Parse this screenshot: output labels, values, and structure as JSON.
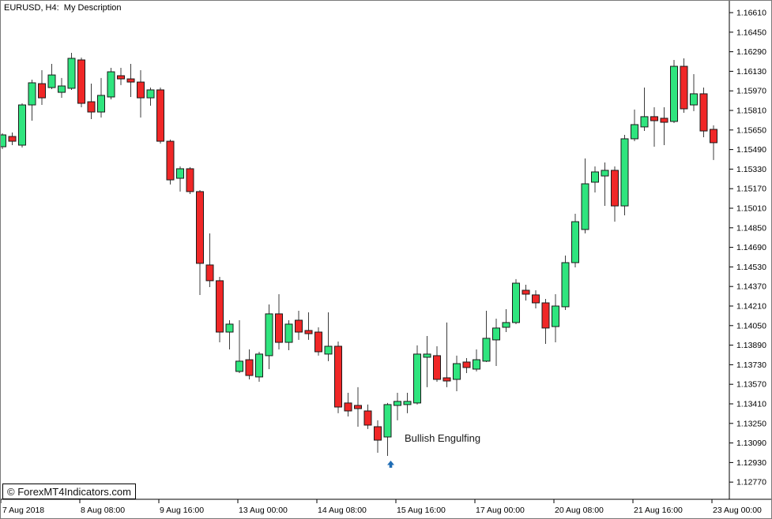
{
  "window": {
    "title": "EURUSD, H4:  My Description"
  },
  "annotation": {
    "label": "Bullish Engulfing",
    "arrow_color": "#1f6cb4",
    "signal_candle_index": 39
  },
  "watermark": {
    "text": "© ForexMT4Indicators.com"
  },
  "colors": {
    "background": "#ffffff",
    "bull_body": "#2fe57e",
    "bear_body": "#f02727",
    "body_border": "#1a1a1a",
    "wick": "#3c3c3c",
    "axis_line": "#000000",
    "axis_text": "#000000"
  },
  "chart_data": {
    "type": "candlestick",
    "symbol": "EURUSD",
    "timeframe": "H4",
    "title": "EURUSD, H4:  My Description",
    "grid": "off",
    "legend": "none",
    "price_axis": {
      "side": "right",
      "max": 1.1661,
      "min": 1.1277,
      "step": 0.0016,
      "labels": [
        "1.16610",
        "1.16450",
        "1.16290",
        "1.16130",
        "1.15970",
        "1.15810",
        "1.15650",
        "1.15490",
        "1.15330",
        "1.15170",
        "1.15010",
        "1.14850",
        "1.14690",
        "1.14530",
        "1.14370",
        "1.14210",
        "1.14050",
        "1.13890",
        "1.13730",
        "1.13570",
        "1.13410",
        "1.13250",
        "1.13090",
        "1.12930",
        "1.12770"
      ]
    },
    "time_axis": {
      "labels": [
        "7 Aug 2018",
        "8 Aug 08:00",
        "9 Aug 16:00",
        "13 Aug 00:00",
        "14 Aug 08:00",
        "15 Aug 16:00",
        "17 Aug 00:00",
        "20 Aug 08:00",
        "21 Aug 16:00",
        "23 Aug 00:00"
      ]
    },
    "columns": [
      "open",
      "high",
      "low",
      "close"
    ],
    "candles": [
      [
        1.15513,
        1.15623,
        1.15494,
        1.1561
      ],
      [
        1.15597,
        1.15629,
        1.15526,
        1.15558
      ],
      [
        1.15526,
        1.15868,
        1.15507,
        1.15855
      ],
      [
        1.15855,
        1.16062,
        1.15726,
        1.16036
      ],
      [
        1.16029,
        1.16139,
        1.15855,
        1.15913
      ],
      [
        1.15997,
        1.16191,
        1.15984,
        1.161
      ],
      [
        1.15958,
        1.16075,
        1.15913,
        1.1601
      ],
      [
        1.15991,
        1.16281,
        1.15978,
        1.16236
      ],
      [
        1.16223,
        1.16242,
        1.15836,
        1.15868
      ],
      [
        1.15881,
        1.16029,
        1.15739,
        1.15797
      ],
      [
        1.15797,
        1.16075,
        1.15752,
        1.15933
      ],
      [
        1.1592,
        1.16158,
        1.159,
        1.16126
      ],
      [
        1.16094,
        1.16158,
        1.16017,
        1.16068
      ],
      [
        1.16068,
        1.16191,
        1.1592,
        1.16042
      ],
      [
        1.16042,
        1.16139,
        1.15752,
        1.15913
      ],
      [
        1.15913,
        1.15997,
        1.15849,
        1.15978
      ],
      [
        1.15978,
        1.15997,
        1.15539,
        1.15558
      ],
      [
        1.15558,
        1.15571,
        1.15204,
        1.15242
      ],
      [
        1.15255,
        1.15352,
        1.15146,
        1.15333
      ],
      [
        1.15333,
        1.15346,
        1.15126,
        1.15146
      ],
      [
        1.15146,
        1.15158,
        1.143,
        1.14559
      ],
      [
        1.14546,
        1.14804,
        1.14365,
        1.14417
      ],
      [
        1.14417,
        1.14449,
        1.13913,
        1.13997
      ],
      [
        1.13997,
        1.14094,
        1.13855,
        1.14062
      ],
      [
        1.13675,
        1.14094,
        1.13662,
        1.13759
      ],
      [
        1.13771,
        1.13855,
        1.1361,
        1.13642
      ],
      [
        1.1363,
        1.13836,
        1.13591,
        1.13817
      ],
      [
        1.13804,
        1.14223,
        1.13694,
        1.14146
      ],
      [
        1.14146,
        1.14307,
        1.13855,
        1.13913
      ],
      [
        1.13913,
        1.14094,
        1.13849,
        1.14062
      ],
      [
        1.14094,
        1.14171,
        1.13933,
        1.13997
      ],
      [
        1.1401,
        1.14158,
        1.13933,
        1.13984
      ],
      [
        1.13997,
        1.14036,
        1.13804,
        1.13836
      ],
      [
        1.13817,
        1.14158,
        1.13759,
        1.13881
      ],
      [
        1.13881,
        1.1392,
        1.13333,
        1.13384
      ],
      [
        1.13417,
        1.135,
        1.13307,
        1.13352
      ],
      [
        1.13397,
        1.13546,
        1.13223,
        1.13371
      ],
      [
        1.13352,
        1.13404,
        1.13204,
        1.13236
      ],
      [
        1.13223,
        1.13275,
        1.1301,
        1.13113
      ],
      [
        1.13139,
        1.13417,
        1.12984,
        1.13404
      ],
      [
        1.13397,
        1.135,
        1.13275,
        1.1343
      ],
      [
        1.13404,
        1.135,
        1.13333,
        1.1343
      ],
      [
        1.13417,
        1.13888,
        1.13404,
        1.13817
      ],
      [
        1.13791,
        1.13965,
        1.13546,
        1.13817
      ],
      [
        1.13804,
        1.13881,
        1.13591,
        1.1361
      ],
      [
        1.13623,
        1.14075,
        1.13546,
        1.13597
      ],
      [
        1.1361,
        1.13804,
        1.13513,
        1.13739
      ],
      [
        1.13752,
        1.13784,
        1.13662,
        1.13707
      ],
      [
        1.13694,
        1.13855,
        1.13675,
        1.13771
      ],
      [
        1.13759,
        1.14171,
        1.13752,
        1.13946
      ],
      [
        1.13933,
        1.14107,
        1.1372,
        1.1403
      ],
      [
        1.14036,
        1.14184,
        1.13997,
        1.14075
      ],
      [
        1.14075,
        1.1443,
        1.14062,
        1.14397
      ],
      [
        1.14339,
        1.14384,
        1.14255,
        1.14307
      ],
      [
        1.14301,
        1.14339,
        1.14191,
        1.14236
      ],
      [
        1.14236,
        1.14268,
        1.139,
        1.1403
      ],
      [
        1.14042,
        1.14307,
        1.13913,
        1.1421
      ],
      [
        1.14204,
        1.14623,
        1.14178,
        1.14565
      ],
      [
        1.14565,
        1.14965,
        1.14526,
        1.149
      ],
      [
        1.14836,
        1.15417,
        1.14804,
        1.1521
      ],
      [
        1.15223,
        1.15352,
        1.15139,
        1.15307
      ],
      [
        1.15274,
        1.15384,
        1.15029,
        1.1532
      ],
      [
        1.1532,
        1.15352,
        1.149,
        1.15029
      ],
      [
        1.15029,
        1.1561,
        1.14952,
        1.15578
      ],
      [
        1.15578,
        1.15817,
        1.15558,
        1.15694
      ],
      [
        1.15675,
        1.15997,
        1.15642,
        1.15759
      ],
      [
        1.15759,
        1.15836,
        1.15513,
        1.15726
      ],
      [
        1.15746,
        1.15836,
        1.15526,
        1.15713
      ],
      [
        1.1572,
        1.16223,
        1.15707,
        1.16171
      ],
      [
        1.16171,
        1.16236,
        1.15791,
        1.15823
      ],
      [
        1.15855,
        1.16107,
        1.15804,
        1.15946
      ],
      [
        1.15946,
        1.15997,
        1.15591,
        1.15642
      ],
      [
        1.15655,
        1.15688,
        1.15404,
        1.15546
      ]
    ]
  }
}
